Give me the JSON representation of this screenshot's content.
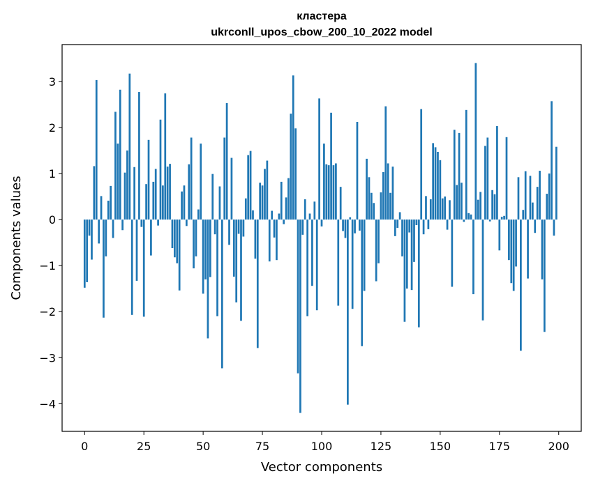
{
  "chart_data": {
    "type": "bar",
    "title": [
      "кластера",
      "ukrconll_upos_cbow_200_10_2022 model"
    ],
    "xlabel": "Vector components",
    "ylabel": "Components values",
    "xlim": [
      -9.5,
      209.5
    ],
    "ylim": [
      -4.6,
      3.8
    ],
    "xticks": [
      0,
      25,
      50,
      75,
      100,
      125,
      150,
      175,
      200
    ],
    "xtick_labels": [
      "0",
      "25",
      "50",
      "75",
      "100",
      "125",
      "150",
      "175",
      "200"
    ],
    "yticks": [
      -4,
      -3,
      -2,
      -1,
      0,
      1,
      2,
      3
    ],
    "ytick_labels": [
      "−4",
      "−3",
      "−2",
      "−1",
      "0",
      "1",
      "2",
      "3"
    ],
    "bar_color": "#1f77b4",
    "x": [
      0,
      1,
      2,
      3,
      4,
      5,
      6,
      7,
      8,
      9,
      10,
      11,
      12,
      13,
      14,
      15,
      16,
      17,
      18,
      19,
      20,
      21,
      22,
      23,
      24,
      25,
      26,
      27,
      28,
      29,
      30,
      31,
      32,
      33,
      34,
      35,
      36,
      37,
      38,
      39,
      40,
      41,
      42,
      43,
      44,
      45,
      46,
      47,
      48,
      49,
      50,
      51,
      52,
      53,
      54,
      55,
      56,
      57,
      58,
      59,
      60,
      61,
      62,
      63,
      64,
      65,
      66,
      67,
      68,
      69,
      70,
      71,
      72,
      73,
      74,
      75,
      76,
      77,
      78,
      79,
      80,
      81,
      82,
      83,
      84,
      85,
      86,
      87,
      88,
      89,
      90,
      91,
      92,
      93,
      94,
      95,
      96,
      97,
      98,
      99,
      100,
      101,
      102,
      103,
      104,
      105,
      106,
      107,
      108,
      109,
      110,
      111,
      112,
      113,
      114,
      115,
      116,
      117,
      118,
      119,
      120,
      121,
      122,
      123,
      124,
      125,
      126,
      127,
      128,
      129,
      130,
      131,
      132,
      133,
      134,
      135,
      136,
      137,
      138,
      139,
      140,
      141,
      142,
      143,
      144,
      145,
      146,
      147,
      148,
      149,
      150,
      151,
      152,
      153,
      154,
      155,
      156,
      157,
      158,
      159,
      160,
      161,
      162,
      163,
      164,
      165,
      166,
      167,
      168,
      169,
      170,
      171,
      172,
      173,
      174,
      175,
      176,
      177,
      178,
      179,
      180,
      181,
      182,
      183,
      184,
      185,
      186,
      187,
      188,
      189,
      190,
      191,
      192,
      193,
      194,
      195,
      196,
      197,
      198,
      199
    ],
    "values": [
      -1.48,
      -1.36,
      -0.35,
      -0.87,
      1.16,
      3.03,
      -0.52,
      0.51,
      -2.13,
      -0.8,
      0.41,
      0.73,
      -0.4,
      2.34,
      1.65,
      2.82,
      -0.23,
      1.02,
      1.5,
      3.17,
      -2.07,
      1.14,
      -1.33,
      2.77,
      -0.16,
      -2.11,
      0.77,
      1.73,
      -0.78,
      0.82,
      1.1,
      -0.13,
      2.17,
      0.74,
      2.74,
      1.15,
      1.21,
      -0.62,
      -0.82,
      -0.95,
      -1.54,
      0.61,
      0.74,
      -0.14,
      1.2,
      1.78,
      -1.06,
      -0.8,
      0.22,
      1.65,
      -1.61,
      -1.3,
      -2.58,
      -1.25,
      0.99,
      -0.32,
      -2.1,
      0.72,
      -3.23,
      1.78,
      2.53,
      -0.55,
      1.34,
      -1.24,
      -1.8,
      -0.31,
      -2.2,
      -0.37,
      0.46,
      1.4,
      1.49,
      0.2,
      -0.85,
      -2.79,
      0.8,
      0.74,
      1.1,
      1.28,
      -0.91,
      0.19,
      -0.39,
      -0.88,
      0.13,
      0.82,
      -0.1,
      0.48,
      0.9,
      2.3,
      3.13,
      1.98,
      -3.34,
      -4.2,
      -0.33,
      0.44,
      -2.1,
      0.13,
      -1.44,
      0.39,
      -1.97,
      2.63,
      -0.15,
      1.65,
      1.2,
      1.18,
      2.32,
      1.18,
      1.22,
      -1.87,
      0.71,
      -0.25,
      -0.4,
      -4.02,
      0.05,
      -1.94,
      -0.3,
      2.12,
      -0.24,
      -2.75,
      -1.55,
      1.32,
      0.92,
      0.58,
      0.36,
      -1.34,
      -0.95,
      0.59,
      1.03,
      2.46,
      1.22,
      0.58,
      1.15,
      -0.36,
      -0.18,
      0.16,
      -0.8,
      -2.22,
      -1.5,
      -0.28,
      -1.53,
      -0.92,
      -0.12,
      -2.34,
      2.4,
      -0.32,
      0.51,
      -0.21,
      0.44,
      1.66,
      1.57,
      1.47,
      1.29,
      0.46,
      0.5,
      -0.22,
      0.42,
      -1.46,
      1.95,
      0.75,
      1.88,
      0.8,
      -0.05,
      2.38,
      0.14,
      0.11,
      -1.62,
      3.4,
      0.43,
      0.6,
      -2.19,
      1.6,
      1.78,
      -0.04,
      0.64,
      0.55,
      2.03,
      -0.67,
      0.06,
      0.08,
      1.79,
      -0.88,
      -1.38,
      -1.55,
      -1.02,
      0.92,
      -2.85,
      0.21,
      1.05,
      -1.28,
      0.95,
      0.37,
      -0.29,
      0.71,
      1.06,
      -1.3,
      -2.44,
      0.56,
      1.0,
      2.57,
      -0.35,
      1.58
    ]
  }
}
